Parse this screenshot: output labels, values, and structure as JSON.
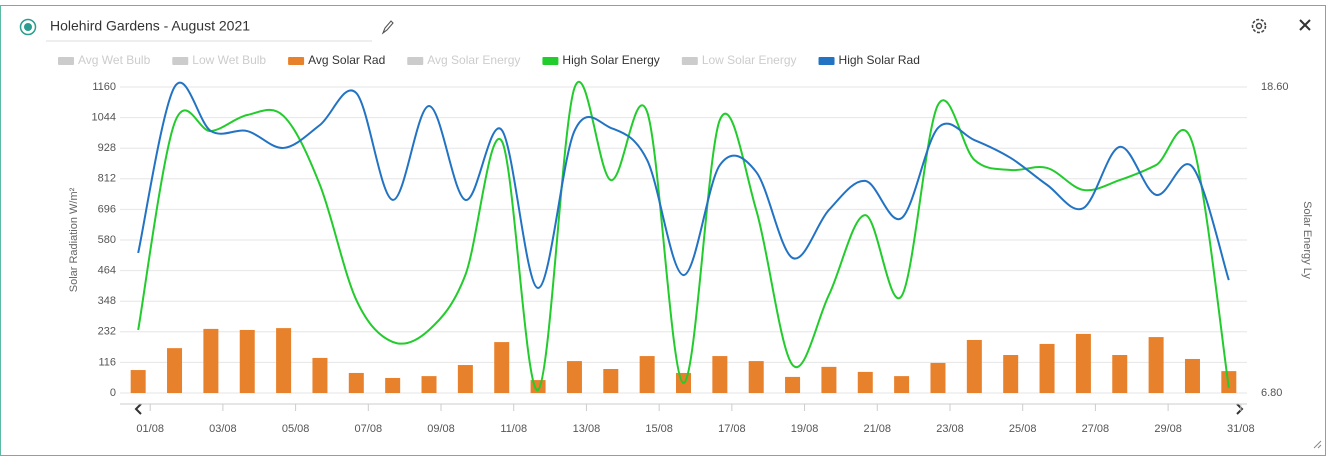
{
  "header": {
    "title": "Holehird Gardens - August 2021"
  },
  "chart_data": {
    "type": "combo",
    "y_axis_title": "Solar Radiation W/m²",
    "y2_axis_title": "Solar Energy Ly",
    "categories": [
      "01/08",
      null,
      "03/08",
      null,
      "05/08",
      null,
      "07/08",
      null,
      "09/08",
      null,
      "11/08",
      null,
      "13/08",
      null,
      "15/08",
      null,
      "17/08",
      null,
      "19/08",
      null,
      "21/08",
      null,
      "23/08",
      null,
      "25/08",
      null,
      "27/08",
      null,
      "29/08",
      null,
      "31/08"
    ],
    "ylim": [
      0,
      1160
    ],
    "yticks": [
      0,
      116,
      232,
      348,
      464,
      580,
      696,
      812,
      928,
      1044,
      1160
    ],
    "y2lim": [
      6.8,
      18.6
    ],
    "y2ticks": [
      {
        "value": 6.8,
        "label": "6.80"
      },
      {
        "value": 18.6,
        "label": "18.60"
      }
    ],
    "grid": true,
    "series": [
      {
        "name": "Avg Wet Bulb",
        "color": "#cccccc",
        "visible": false
      },
      {
        "name": "Low Wet Bulb",
        "color": "#cccccc",
        "visible": false
      },
      {
        "name": "Avg Solar Rad",
        "color": "#e8812b",
        "visible": true,
        "kind": "bar",
        "axis": "y",
        "values": [
          87,
          170,
          243,
          239,
          246,
          133,
          76,
          57,
          64,
          106,
          193,
          49,
          121,
          91,
          140,
          76,
          140,
          121,
          61,
          99,
          80,
          64,
          114,
          201,
          144,
          186,
          224,
          144,
          212,
          129,
          83
        ]
      },
      {
        "name": "Avg Solar Energy",
        "color": "#cccccc",
        "visible": false
      },
      {
        "name": "High Solar Energy",
        "color": "#22cc2c",
        "visible": true,
        "kind": "spline",
        "axis": "y2",
        "values": [
          9.23,
          17.21,
          16.9,
          17.52,
          17.48,
          14.82,
          10.39,
          8.77,
          9.23,
          11.35,
          16.52,
          6.92,
          18.56,
          15.01,
          17.64,
          7.19,
          17.33,
          13.86,
          7.88,
          10.58,
          13.66,
          10.54,
          17.91,
          15.79,
          15.4,
          15.48,
          14.63,
          15.01,
          15.59,
          16.44,
          7.0
        ]
      },
      {
        "name": "Low Solar Energy",
        "color": "#cccccc",
        "visible": false
      },
      {
        "name": "High Solar Rad",
        "color": "#2273c3",
        "visible": true,
        "kind": "spline",
        "axis": "y",
        "values": [
          531,
          1160,
          993,
          993,
          929,
          1016,
          1137,
          732,
          1088,
          732,
          997,
          398,
          993,
          1005,
          883,
          447,
          864,
          838,
          512,
          694,
          804,
          663,
          1005,
          959,
          891,
          789,
          701,
          933,
          751,
          857,
          428
        ]
      }
    ]
  }
}
